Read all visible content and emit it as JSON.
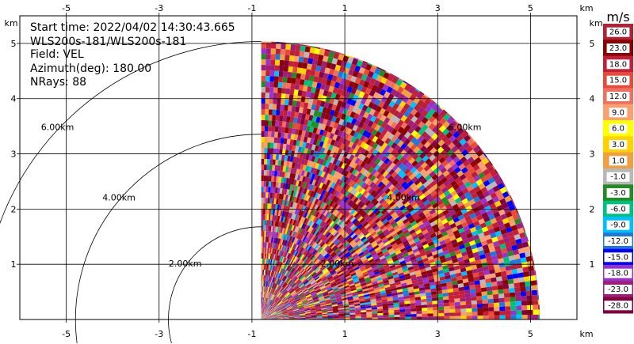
{
  "chart_data": {
    "type": "heatmap",
    "subtype": "radar-ppi-sector",
    "info": {
      "start_time": "Start time: 2022/04/02 14:30:43.665",
      "instrument": "WLS200s-181/WLS200s-181",
      "field": "Field: VEL",
      "azimuth": "Azimuth(deg): 180.00",
      "nrays": "NRays: 88"
    },
    "x_ticks": [
      "-5",
      "-3",
      "-1",
      "1",
      "3",
      "5"
    ],
    "x_tick_values": [
      -5,
      -3,
      -1,
      1,
      3,
      5
    ],
    "y_ticks": [
      "1",
      "2",
      "3",
      "4",
      "5"
    ],
    "y_tick_values": [
      1,
      2,
      3,
      4,
      5
    ],
    "x_unit": "km",
    "y_unit": "km",
    "xlim": [
      -6.0,
      6.0
    ],
    "ylim": [
      0.0,
      5.5
    ],
    "range_rings": [
      {
        "radius_km": 2,
        "label": "2.00km",
        "left_angle_deg": 145,
        "right_angle_deg": 35
      },
      {
        "radius_km": 4,
        "label": "4.00km",
        "left_angle_deg": 140,
        "right_angle_deg": 40
      },
      {
        "radius_km": 6,
        "label": "6.00km",
        "left_angle_deg": 137,
        "right_angle_deg": 43
      }
    ],
    "sector": {
      "x_from_km": -0.8,
      "max_range_km": 6.0,
      "azimuth_from_deg": 0,
      "azimuth_to_deg": 90
    },
    "colorbar": {
      "unit": "m/s",
      "labels": [
        "26.0",
        "23.0",
        "18.0",
        "15.0",
        "12.0",
        "9.0",
        "6.0",
        "3.0",
        "1.0",
        "-1.0",
        "-3.0",
        "-6.0",
        "-9.0",
        "-12.0",
        "-15.0",
        "-18.0",
        "-23.0",
        "-28.0"
      ],
      "colors": [
        "#B22234",
        "#8B0000",
        "#C41E3A",
        "#E84A3A",
        "#F07060",
        "#F8A070",
        "#FFFF00",
        "#FFD200",
        "#F0A040",
        "#B8B8B8",
        "#228B22",
        "#00C080",
        "#00BFFF",
        "#1E78DC",
        "#0000FF",
        "#9932CC",
        "#A01E78",
        "#800040"
      ]
    }
  }
}
